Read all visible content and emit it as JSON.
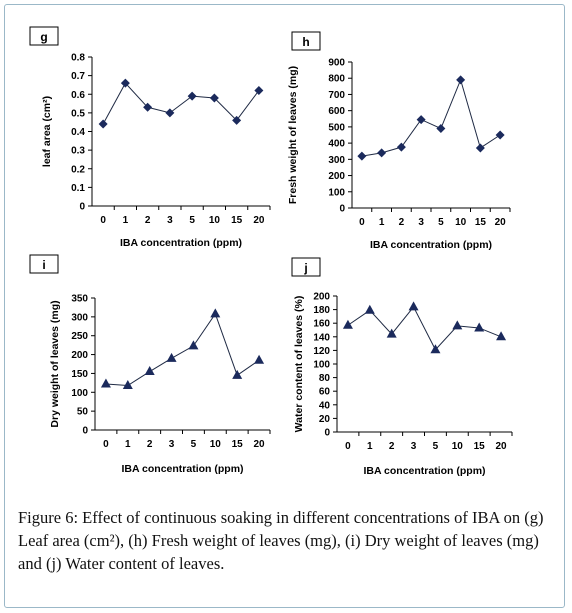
{
  "chart_data": [
    {
      "type": "line",
      "panel": "g",
      "categories": [
        "0",
        "1",
        "2",
        "3",
        "5",
        "10",
        "15",
        "20"
      ],
      "values": [
        0.44,
        0.66,
        0.53,
        0.5,
        0.59,
        0.58,
        0.46,
        0.62
      ],
      "xlabel": "IBA concentration (ppm)",
      "ylabel": "leaf area (cm²)",
      "ylim": [
        0,
        0.8
      ],
      "yticks": [
        "0",
        "0.1",
        "0.2",
        "0.3",
        "0.4",
        "0.5",
        "0.6",
        "0.7",
        "0.8"
      ],
      "marker": "diamond",
      "grid": false
    },
    {
      "type": "line",
      "panel": "h",
      "categories": [
        "0",
        "1",
        "2",
        "3",
        "5",
        "10",
        "15",
        "20"
      ],
      "values": [
        320,
        340,
        375,
        545,
        490,
        790,
        370,
        450
      ],
      "xlabel": "IBA concentration (ppm)",
      "ylabel": "Fresh weight of leaves (mg)",
      "ylim": [
        0,
        900
      ],
      "yticks": [
        "0",
        "100",
        "200",
        "300",
        "400",
        "500",
        "600",
        "700",
        "800",
        "900"
      ],
      "marker": "diamond",
      "grid": false
    },
    {
      "type": "line",
      "panel": "i",
      "categories": [
        "0",
        "1",
        "2",
        "3",
        "5",
        "10",
        "15",
        "20"
      ],
      "values": [
        122,
        118,
        155,
        190,
        223,
        308,
        145,
        185
      ],
      "xlabel": "IBA concentration (ppm)",
      "ylabel": "Dry weight of leaves (mg)",
      "ylim": [
        0,
        350
      ],
      "yticks": [
        "0",
        "50",
        "100",
        "150",
        "200",
        "250",
        "300",
        "350"
      ],
      "marker": "triangle",
      "grid": false
    },
    {
      "type": "line",
      "panel": "j",
      "categories": [
        "0",
        "1",
        "2",
        "3",
        "5",
        "10",
        "15",
        "20"
      ],
      "values": [
        157,
        179,
        144,
        184,
        121,
        156,
        153,
        140
      ],
      "xlabel": "IBA concentration (ppm)",
      "ylabel": "Water content of leaves (%)",
      "ylim": [
        0,
        200
      ],
      "yticks": [
        "0",
        "20",
        "40",
        "60",
        "80",
        "100",
        "120",
        "140",
        "160",
        "180",
        "200"
      ],
      "marker": "triangle",
      "grid": false
    }
  ],
  "caption": {
    "lead": "Figure 6:",
    "text": " Effect of continuous soaking in different concentrations of IBA on (g) Leaf area (cm²), (h) Fresh weight of leaves (mg), (i) Dry weight of leaves (mg) and (j) Water content of leaves."
  },
  "colors": {
    "series": "#1f2a44",
    "marker": "#1b2a5c",
    "axis": "#000000",
    "frame": "#9bb8c8"
  }
}
